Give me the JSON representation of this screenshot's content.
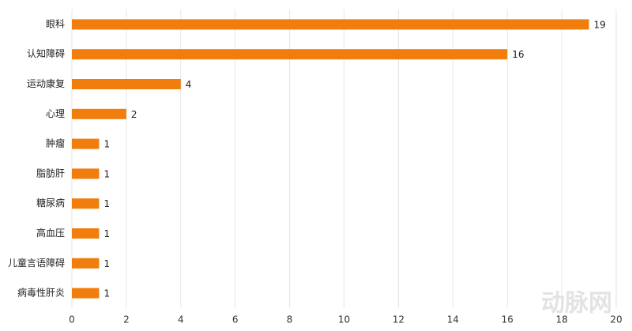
{
  "chart_data": {
    "type": "bar",
    "orientation": "horizontal",
    "categories": [
      "眼科",
      "认知障碍",
      "运动康复",
      "心理",
      "肿瘤",
      "脂肪肝",
      "糖尿病",
      "高血压",
      "儿童言语障碍",
      "病毒性肝炎"
    ],
    "values": [
      19,
      16,
      4,
      2,
      1,
      1,
      1,
      1,
      1,
      1
    ],
    "color": "#f07d0c",
    "xlim": [
      0,
      20
    ],
    "xticks": [
      0,
      2,
      4,
      6,
      8,
      10,
      12,
      14,
      16,
      18,
      20
    ],
    "grid": true,
    "watermark": "动脉网"
  }
}
